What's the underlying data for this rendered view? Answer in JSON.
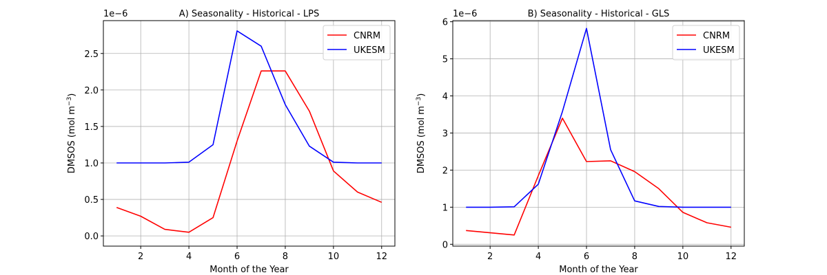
{
  "chart_data": [
    {
      "type": "line",
      "title": "A) Seasonality - Historical - LPS",
      "xlabel": "Month of the Year",
      "ylabel": "DMSOS (mol m",
      "ylabel_exponent": "−3",
      "ylabel_close": ")",
      "offset_text": "1e−6",
      "xlim": [
        0.45,
        12.55
      ],
      "ylim": [
        -0.14,
        2.95
      ],
      "xticks": [
        2,
        4,
        6,
        8,
        10,
        12
      ],
      "yticks": [
        0.0,
        0.5,
        1.0,
        1.5,
        2.0,
        2.5
      ],
      "ytick_labels": [
        "0.0",
        "0.5",
        "1.0",
        "1.5",
        "2.0",
        "2.5"
      ],
      "grid": true,
      "legend_position": "top-right",
      "x": [
        1,
        2,
        3,
        4,
        5,
        6,
        7,
        8,
        9,
        10,
        11,
        12
      ],
      "series": [
        {
          "name": "CNRM",
          "color": "#ff0000",
          "values": [
            0.39,
            0.27,
            0.09,
            0.05,
            0.25,
            1.3,
            2.26,
            2.26,
            1.71,
            0.89,
            0.6,
            0.46
          ]
        },
        {
          "name": "UKESM",
          "color": "#0000ff",
          "values": [
            1.0,
            1.0,
            1.0,
            1.01,
            1.25,
            2.81,
            2.6,
            1.8,
            1.23,
            1.01,
            1.0,
            1.0
          ]
        }
      ]
    },
    {
      "type": "line",
      "title": "B) Seasonality - Historical - GLS",
      "xlabel": "Month of the Year",
      "ylabel": "DMSOS (mol m",
      "ylabel_exponent": "−3",
      "ylabel_close": ")",
      "offset_text": "1e−6",
      "xlim": [
        0.45,
        12.55
      ],
      "ylim": [
        -0.05,
        6.03
      ],
      "xticks": [
        2,
        4,
        6,
        8,
        10,
        12
      ],
      "yticks": [
        0,
        1,
        2,
        3,
        4,
        5,
        6
      ],
      "ytick_labels": [
        "0",
        "1",
        "2",
        "3",
        "4",
        "5",
        "6"
      ],
      "grid": true,
      "legend_position": "top-right",
      "x": [
        1,
        2,
        3,
        4,
        5,
        6,
        7,
        8,
        9,
        10,
        11,
        12
      ],
      "series": [
        {
          "name": "CNRM",
          "color": "#ff0000",
          "values": [
            0.37,
            0.31,
            0.25,
            1.85,
            3.4,
            2.23,
            2.25,
            1.96,
            1.5,
            0.86,
            0.58,
            0.46
          ]
        },
        {
          "name": "UKESM",
          "color": "#0000ff",
          "values": [
            1.0,
            1.0,
            1.01,
            1.62,
            3.58,
            5.82,
            2.55,
            1.17,
            1.02,
            1.0,
            1.0,
            1.0
          ]
        }
      ]
    }
  ]
}
